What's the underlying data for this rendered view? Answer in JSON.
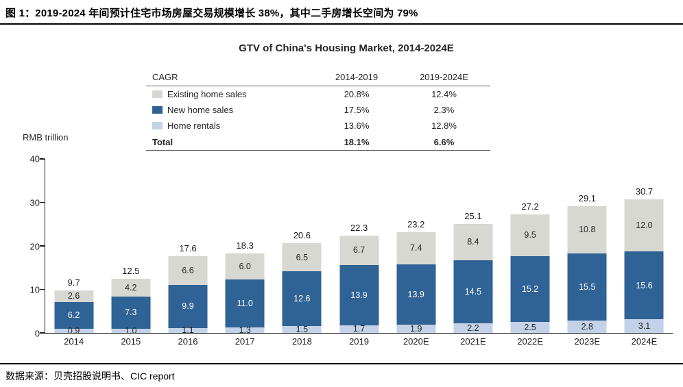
{
  "header": {
    "title": "图 1：2019-2024 年间预计住宅市场房屋交易规模增长 38%，其中二手房增长空间为 79%"
  },
  "footer": {
    "source": "数据来源：贝壳招股说明书、CIC report"
  },
  "chart": {
    "title": "GTV of China's Housing Market, 2014-2024E",
    "unit_label": "RMB trillion",
    "legend_table": {
      "header": [
        "CAGR",
        "2014-2019",
        "2019-2024E"
      ],
      "rows": [
        {
          "label": "Existing home sales",
          "swatch": "#d8d8d3",
          "cagr_2014_2019": "20.8%",
          "cagr_2019_2024": "12.4%"
        },
        {
          "label": "New home sales",
          "swatch": "#2f6395",
          "cagr_2014_2019": "17.5%",
          "cagr_2019_2024": "2.3%"
        },
        {
          "label": "Home rentals",
          "swatch": "#c3d2e8",
          "cagr_2014_2019": "13.6%",
          "cagr_2019_2024": "12.8%"
        },
        {
          "label": "Total",
          "swatch": null,
          "cagr_2014_2019": "18.1%",
          "cagr_2019_2024": "6.6%"
        }
      ]
    }
  },
  "chart_data": {
    "type": "bar",
    "stacked": true,
    "title": "GTV of China's Housing Market, 2014-2024E",
    "xlabel": "",
    "ylabel": "RMB trillion",
    "ylim": [
      0,
      40
    ],
    "yticks": [
      0,
      10,
      20,
      30,
      40
    ],
    "grid": false,
    "legend_position": "top-table",
    "categories": [
      "2014",
      "2015",
      "2016",
      "2017",
      "2018",
      "2019",
      "2020E",
      "2021E",
      "2022E",
      "2023E",
      "2024E"
    ],
    "series": [
      {
        "name": "Home rentals",
        "color": "#c3d2e8",
        "label_color": "#262626",
        "values": [
          0.9,
          1.0,
          1.1,
          1.3,
          1.5,
          1.7,
          1.9,
          2.2,
          2.5,
          2.8,
          3.1
        ]
      },
      {
        "name": "New home sales",
        "color": "#2f6395",
        "label_color": "#ffffff",
        "values": [
          6.2,
          7.3,
          9.9,
          11.0,
          12.6,
          13.9,
          13.9,
          14.5,
          15.2,
          15.5,
          15.6
        ]
      },
      {
        "name": "Existing home sales",
        "color": "#d8d8d3",
        "label_color": "#262626",
        "values": [
          2.6,
          4.2,
          6.6,
          6.0,
          6.5,
          6.7,
          7.4,
          8.4,
          9.5,
          10.8,
          12.0
        ]
      }
    ],
    "totals": [
      9.7,
      12.5,
      17.6,
      18.3,
      20.6,
      22.3,
      23.2,
      25.1,
      27.2,
      29.1,
      30.7
    ]
  }
}
